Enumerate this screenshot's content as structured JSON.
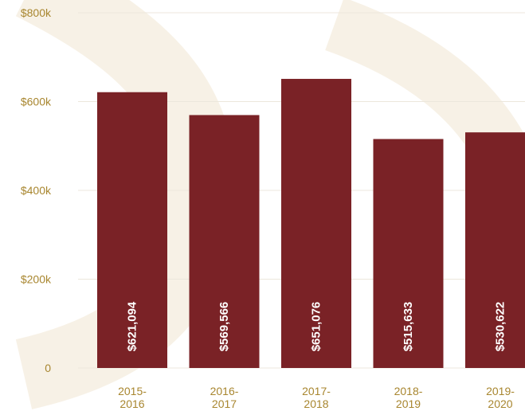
{
  "colors": {
    "bar": "#7a2226",
    "axis_text": "#a8862f",
    "grid": "#ece7dc",
    "watermark": "#f7f1e6",
    "bar_label": "#ffffff"
  },
  "chart_data": {
    "type": "bar",
    "title": "",
    "xlabel": "",
    "ylabel": "",
    "ylim": [
      0,
      800000
    ],
    "yticks": [
      {
        "value": 0,
        "label": "0"
      },
      {
        "value": 200000,
        "label": "$200k"
      },
      {
        "value": 400000,
        "label": "$400k"
      },
      {
        "value": 600000,
        "label": "$600k"
      },
      {
        "value": 800000,
        "label": "$800k"
      }
    ],
    "grid": true,
    "legend": "none",
    "categories": [
      {
        "line1": "2015-",
        "line2": "2016"
      },
      {
        "line1": "2016-",
        "line2": "2017"
      },
      {
        "line1": "2017-",
        "line2": "2018"
      },
      {
        "line1": "2018-",
        "line2": "2019"
      },
      {
        "line1": "2019-",
        "line2": "2020"
      }
    ],
    "values": [
      621094,
      569566,
      651076,
      515633,
      530622
    ],
    "data_labels": [
      "$621,094",
      "$569,566",
      "$651,076",
      "$515,633",
      "$530,622"
    ]
  }
}
